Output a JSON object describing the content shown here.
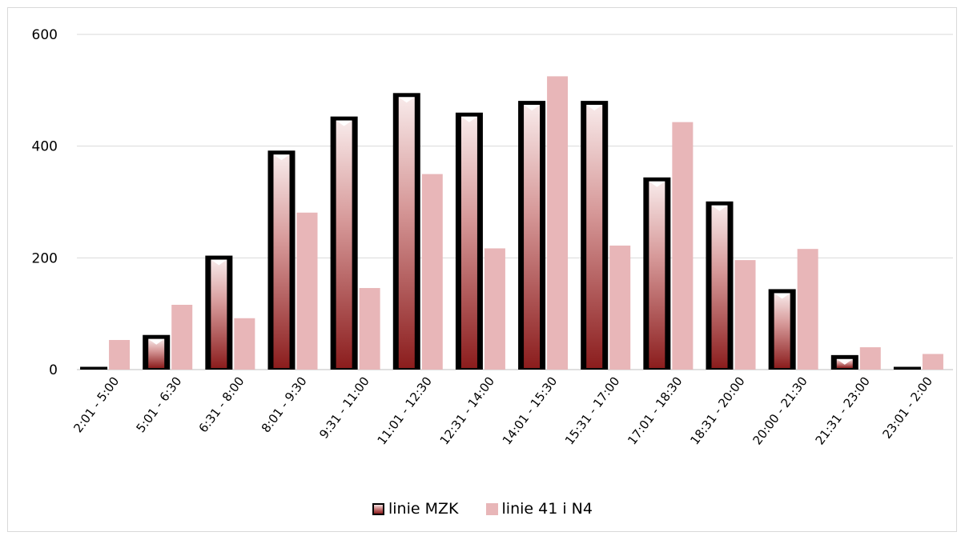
{
  "chart_data": {
    "type": "bar",
    "categories": [
      "2:01 - 5:00",
      "5:01 - 6:30",
      "6:31 - 8:00",
      "8:01 - 9:30",
      "9:31 - 11:00",
      "11:01 - 12:30",
      "12:31 - 14:00",
      "14:01 - 15:30",
      "15:31 - 17:00",
      "17:01 - 18:30",
      "18:31 - 20:00",
      "20:00 - 21:30",
      "21:31 - 23:00",
      "23:01 - 2:00"
    ],
    "series": [
      {
        "name": "linie MZK",
        "values": [
          5,
          62,
          204,
          392,
          453,
          495,
          460,
          481,
          481,
          344,
          301,
          144,
          26,
          5
        ]
      },
      {
        "name": "linie 41 i N4",
        "values": [
          53,
          116,
          92,
          281,
          146,
          350,
          217,
          525,
          222,
          443,
          196,
          216,
          40,
          28
        ]
      }
    ],
    "title": "",
    "xlabel": "",
    "ylabel": "",
    "ylim": [
      0,
      600
    ],
    "yticks": [
      0,
      200,
      400,
      600
    ],
    "grid": true,
    "legend_position": "bottom",
    "colors": {
      "linie MZK_border": "#000000",
      "linie MZK_top": "#f6e4e4",
      "linie MZK_bottom": "#8b1d1d",
      "linie 41 i N4": "#e8b6b8",
      "grid": "#d9d9d9"
    }
  },
  "legend": {
    "mzk_label": "linie MZK",
    "n4_label": "linie 41 i N4"
  }
}
